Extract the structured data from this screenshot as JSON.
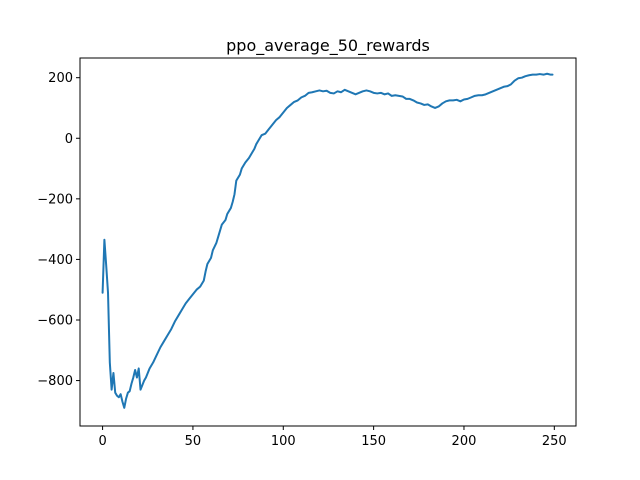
{
  "chart_data": {
    "type": "line",
    "title": "ppo_average_50_rewards",
    "xlabel": "",
    "ylabel": "",
    "xlim": [
      -12.5,
      262
    ],
    "ylim": [
      -950,
      265
    ],
    "xticks": [
      0,
      50,
      100,
      150,
      200,
      250
    ],
    "yticks": [
      -800,
      -600,
      -400,
      -200,
      0,
      200
    ],
    "grid": false,
    "series": [
      {
        "color": "#1f77b4",
        "points": [
          [
            0,
            -510
          ],
          [
            1,
            -335
          ],
          [
            2,
            -420
          ],
          [
            3,
            -510
          ],
          [
            4,
            -740
          ],
          [
            5,
            -830
          ],
          [
            6,
            -775
          ],
          [
            7,
            -840
          ],
          [
            8,
            -850
          ],
          [
            9,
            -855
          ],
          [
            10,
            -845
          ],
          [
            11,
            -870
          ],
          [
            12,
            -890
          ],
          [
            13,
            -860
          ],
          [
            14,
            -840
          ],
          [
            15,
            -835
          ],
          [
            16,
            -810
          ],
          [
            17,
            -790
          ],
          [
            18,
            -765
          ],
          [
            19,
            -790
          ],
          [
            20,
            -760
          ],
          [
            21,
            -830
          ],
          [
            22,
            -815
          ],
          [
            23,
            -800
          ],
          [
            24,
            -790
          ],
          [
            26,
            -760
          ],
          [
            28,
            -740
          ],
          [
            30,
            -715
          ],
          [
            32,
            -690
          ],
          [
            34,
            -670
          ],
          [
            36,
            -650
          ],
          [
            38,
            -630
          ],
          [
            40,
            -605
          ],
          [
            42,
            -585
          ],
          [
            44,
            -565
          ],
          [
            46,
            -545
          ],
          [
            48,
            -530
          ],
          [
            50,
            -515
          ],
          [
            52,
            -500
          ],
          [
            54,
            -490
          ],
          [
            56,
            -470
          ],
          [
            57,
            -440
          ],
          [
            58,
            -415
          ],
          [
            60,
            -395
          ],
          [
            61,
            -370
          ],
          [
            63,
            -345
          ],
          [
            64,
            -325
          ],
          [
            66,
            -285
          ],
          [
            68,
            -270
          ],
          [
            69,
            -250
          ],
          [
            71,
            -230
          ],
          [
            72,
            -210
          ],
          [
            73,
            -185
          ],
          [
            74,
            -140
          ],
          [
            76,
            -120
          ],
          [
            77,
            -100
          ],
          [
            79,
            -80
          ],
          [
            81,
            -65
          ],
          [
            83,
            -45
          ],
          [
            84,
            -35
          ],
          [
            85,
            -20
          ],
          [
            86,
            -10
          ],
          [
            87,
            0
          ],
          [
            88,
            10
          ],
          [
            90,
            15
          ],
          [
            92,
            30
          ],
          [
            94,
            45
          ],
          [
            96,
            60
          ],
          [
            98,
            70
          ],
          [
            100,
            85
          ],
          [
            102,
            100
          ],
          [
            104,
            110
          ],
          [
            106,
            120
          ],
          [
            108,
            125
          ],
          [
            110,
            135
          ],
          [
            112,
            140
          ],
          [
            114,
            150
          ],
          [
            116,
            152
          ],
          [
            118,
            155
          ],
          [
            120,
            158
          ],
          [
            122,
            155
          ],
          [
            124,
            157
          ],
          [
            126,
            150
          ],
          [
            128,
            148
          ],
          [
            130,
            155
          ],
          [
            132,
            152
          ],
          [
            134,
            160
          ],
          [
            136,
            155
          ],
          [
            138,
            150
          ],
          [
            140,
            145
          ],
          [
            142,
            150
          ],
          [
            144,
            155
          ],
          [
            146,
            158
          ],
          [
            148,
            155
          ],
          [
            150,
            150
          ],
          [
            152,
            148
          ],
          [
            154,
            150
          ],
          [
            156,
            145
          ],
          [
            158,
            148
          ],
          [
            160,
            140
          ],
          [
            162,
            142
          ],
          [
            164,
            140
          ],
          [
            166,
            138
          ],
          [
            168,
            130
          ],
          [
            170,
            130
          ],
          [
            172,
            125
          ],
          [
            174,
            118
          ],
          [
            176,
            115
          ],
          [
            178,
            110
          ],
          [
            180,
            112
          ],
          [
            182,
            105
          ],
          [
            184,
            100
          ],
          [
            186,
            105
          ],
          [
            188,
            115
          ],
          [
            190,
            122
          ],
          [
            192,
            125
          ],
          [
            194,
            125
          ],
          [
            196,
            127
          ],
          [
            198,
            122
          ],
          [
            200,
            128
          ],
          [
            202,
            130
          ],
          [
            204,
            135
          ],
          [
            206,
            140
          ],
          [
            208,
            142
          ],
          [
            210,
            142
          ],
          [
            212,
            145
          ],
          [
            214,
            150
          ],
          [
            216,
            155
          ],
          [
            218,
            160
          ],
          [
            220,
            165
          ],
          [
            222,
            170
          ],
          [
            224,
            172
          ],
          [
            226,
            178
          ],
          [
            228,
            190
          ],
          [
            230,
            198
          ],
          [
            232,
            200
          ],
          [
            234,
            205
          ],
          [
            236,
            208
          ],
          [
            238,
            210
          ],
          [
            240,
            210
          ],
          [
            242,
            212
          ],
          [
            244,
            210
          ],
          [
            246,
            213
          ],
          [
            248,
            210
          ],
          [
            249,
            210
          ]
        ]
      }
    ]
  }
}
